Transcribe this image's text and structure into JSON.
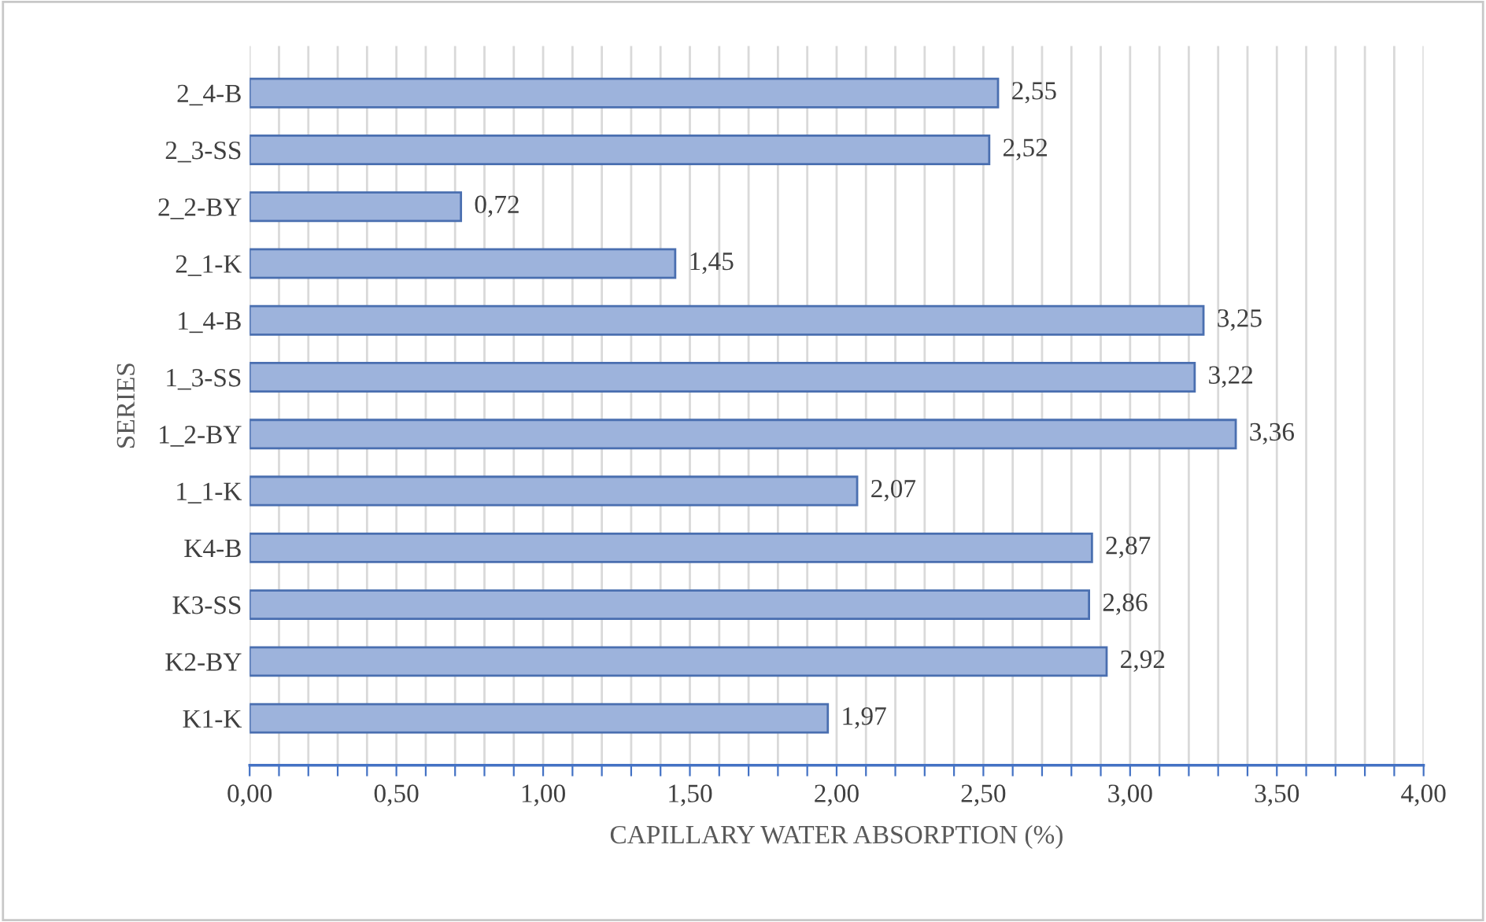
{
  "chart_data": {
    "type": "bar",
    "orientation": "horizontal",
    "xlabel": "CAPILLARY WATER ABSORPTION (%)",
    "ylabel": "SERIES",
    "categories": [
      "2_4-B",
      "2_3-SS",
      "2_2-BY",
      "2_1-K",
      "1_4-B",
      "1_3-SS",
      "1_2-BY",
      "1_1-K",
      "K4-B",
      "K3-SS",
      "K2-BY",
      "K1-K"
    ],
    "values": [
      2.55,
      2.52,
      0.72,
      1.45,
      3.25,
      3.22,
      3.36,
      2.07,
      2.87,
      2.86,
      2.92,
      1.97
    ],
    "value_labels": [
      "2,55",
      "2,52",
      "0,72",
      "1,45",
      "3,25",
      "3,22",
      "3,36",
      "2,07",
      "2,87",
      "2,86",
      "2,92",
      "1,97"
    ],
    "color": "#9db3dc",
    "xlim": [
      0,
      4
    ],
    "xticks": [
      {
        "value": 0,
        "label": "0,00"
      },
      {
        "value": 0.1,
        "label": null
      },
      {
        "value": 0.2,
        "label": null
      },
      {
        "value": 0.3,
        "label": null
      },
      {
        "value": 0.4,
        "label": null
      },
      {
        "value": 0.5,
        "label": "0,50"
      },
      {
        "value": 0.6,
        "label": null
      },
      {
        "value": 0.7,
        "label": null
      },
      {
        "value": 0.8,
        "label": null
      },
      {
        "value": 0.9,
        "label": null
      },
      {
        "value": 1,
        "label": "1,00"
      },
      {
        "value": 1.1,
        "label": null
      },
      {
        "value": 1.2,
        "label": null
      },
      {
        "value": 1.3,
        "label": null
      },
      {
        "value": 1.4,
        "label": null
      },
      {
        "value": 1.5,
        "label": "1,50"
      },
      {
        "value": 1.6,
        "label": null
      },
      {
        "value": 1.7,
        "label": null
      },
      {
        "value": 1.8,
        "label": null
      },
      {
        "value": 1.9,
        "label": null
      },
      {
        "value": 2,
        "label": "2,00"
      },
      {
        "value": 2.1,
        "label": null
      },
      {
        "value": 2.2,
        "label": null
      },
      {
        "value": 2.3,
        "label": null
      },
      {
        "value": 2.4,
        "label": null
      },
      {
        "value": 2.5,
        "label": "2,50"
      },
      {
        "value": 2.6,
        "label": null
      },
      {
        "value": 2.7,
        "label": null
      },
      {
        "value": 2.8,
        "label": null
      },
      {
        "value": 2.9,
        "label": null
      },
      {
        "value": 3,
        "label": "3,00"
      },
      {
        "value": 3.1,
        "label": null
      },
      {
        "value": 3.2,
        "label": null
      },
      {
        "value": 3.3,
        "label": null
      },
      {
        "value": 3.4,
        "label": null
      },
      {
        "value": 3.5,
        "label": "3,50"
      },
      {
        "value": 3.6,
        "label": null
      },
      {
        "value": 3.7,
        "label": null
      },
      {
        "value": 3.8,
        "label": null
      },
      {
        "value": 3.9,
        "label": null
      },
      {
        "value": 4,
        "label": "4,00"
      }
    ],
    "grid": "x",
    "legend": false
  }
}
